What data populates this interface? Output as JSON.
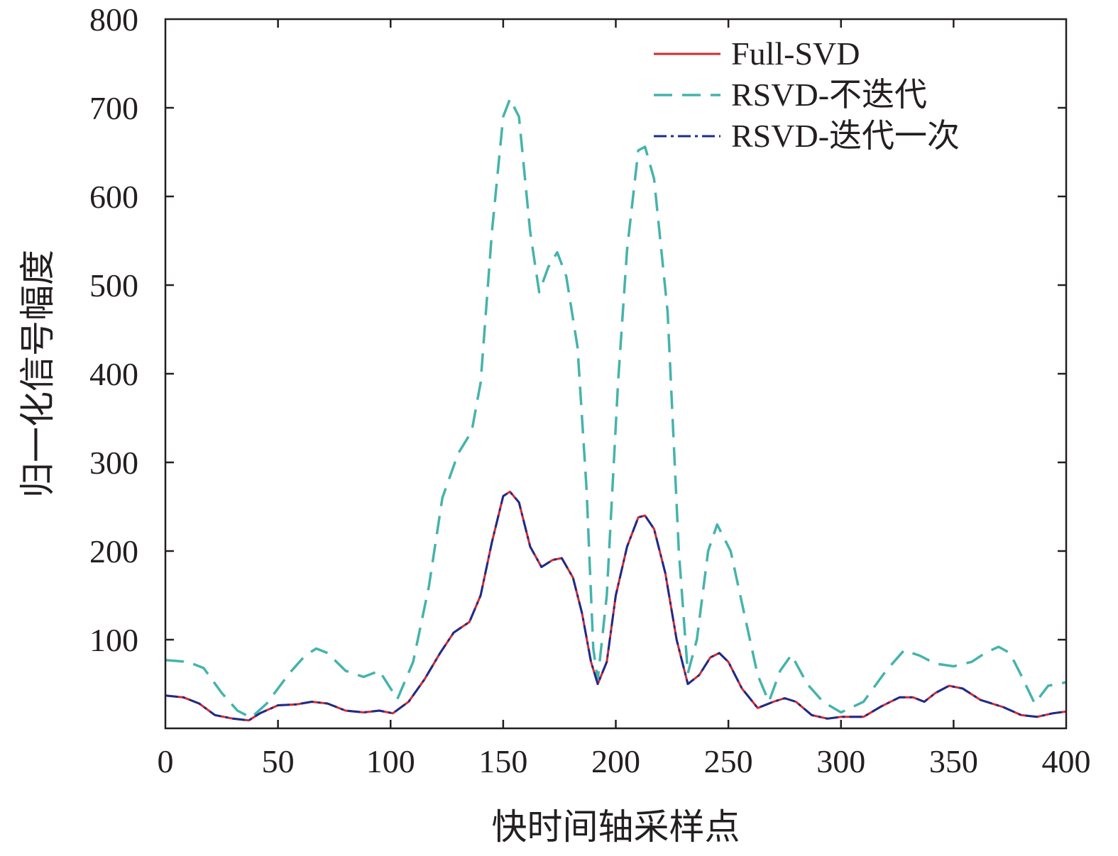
{
  "chart_data": {
    "type": "line",
    "title": "",
    "xlabel": "快时间轴采样点",
    "ylabel": "归一化信号幅度",
    "xlim": [
      0,
      400
    ],
    "ylim": [
      0,
      800
    ],
    "xticks": [
      0,
      50,
      100,
      150,
      200,
      250,
      300,
      350,
      400
    ],
    "yticks": [
      100,
      200,
      300,
      400,
      500,
      600,
      700,
      800
    ],
    "xtick_labels": [
      "0",
      "50",
      "100",
      "150",
      "200",
      "250",
      "300",
      "350",
      "400"
    ],
    "ytick_labels": [
      "100",
      "200",
      "300",
      "400",
      "500",
      "600",
      "700",
      "800"
    ],
    "grid": false,
    "legend_position": "top-right",
    "series": [
      {
        "name": "Full-SVD",
        "color": "#d7282f",
        "dash": "solid",
        "points": [
          [
            0,
            37
          ],
          [
            8,
            35
          ],
          [
            15,
            28
          ],
          [
            22,
            15
          ],
          [
            30,
            11
          ],
          [
            37,
            9
          ],
          [
            42,
            17
          ],
          [
            50,
            26
          ],
          [
            58,
            27
          ],
          [
            65,
            30
          ],
          [
            72,
            28
          ],
          [
            80,
            20
          ],
          [
            88,
            18
          ],
          [
            95,
            20
          ],
          [
            101,
            17
          ],
          [
            108,
            30
          ],
          [
            115,
            55
          ],
          [
            122,
            85
          ],
          [
            128,
            108
          ],
          [
            135,
            120
          ],
          [
            140,
            150
          ],
          [
            145,
            210
          ],
          [
            150,
            262
          ],
          [
            153,
            267
          ],
          [
            157,
            255
          ],
          [
            162,
            205
          ],
          [
            167,
            182
          ],
          [
            172,
            190
          ],
          [
            176,
            192
          ],
          [
            181,
            170
          ],
          [
            185,
            130
          ],
          [
            189,
            75
          ],
          [
            192,
            50
          ],
          [
            196,
            75
          ],
          [
            200,
            150
          ],
          [
            205,
            205
          ],
          [
            210,
            238
          ],
          [
            213,
            240
          ],
          [
            217,
            225
          ],
          [
            222,
            175
          ],
          [
            227,
            100
          ],
          [
            232,
            50
          ],
          [
            237,
            60
          ],
          [
            242,
            80
          ],
          [
            246,
            85
          ],
          [
            250,
            75
          ],
          [
            256,
            45
          ],
          [
            263,
            23
          ],
          [
            270,
            30
          ],
          [
            275,
            34
          ],
          [
            280,
            30
          ],
          [
            287,
            15
          ],
          [
            294,
            11
          ],
          [
            300,
            13
          ],
          [
            310,
            13
          ],
          [
            318,
            25
          ],
          [
            326,
            35
          ],
          [
            332,
            35
          ],
          [
            337,
            30
          ],
          [
            342,
            40
          ],
          [
            348,
            48
          ],
          [
            354,
            45
          ],
          [
            362,
            32
          ],
          [
            372,
            24
          ],
          [
            380,
            15
          ],
          [
            387,
            13
          ],
          [
            394,
            17
          ],
          [
            400,
            19
          ]
        ]
      },
      {
        "name": "RSVD-不迭代",
        "color": "#45b3ac",
        "dash": "dashed",
        "points": [
          [
            0,
            77
          ],
          [
            10,
            75
          ],
          [
            17,
            68
          ],
          [
            25,
            40
          ],
          [
            32,
            20
          ],
          [
            38,
            12
          ],
          [
            45,
            28
          ],
          [
            55,
            62
          ],
          [
            62,
            82
          ],
          [
            67,
            90
          ],
          [
            72,
            85
          ],
          [
            80,
            65
          ],
          [
            88,
            58
          ],
          [
            95,
            65
          ],
          [
            100,
            45
          ],
          [
            103,
            33
          ],
          [
            110,
            75
          ],
          [
            117,
            160
          ],
          [
            123,
            260
          ],
          [
            130,
            310
          ],
          [
            136,
            335
          ],
          [
            140,
            390
          ],
          [
            145,
            560
          ],
          [
            150,
            690
          ],
          [
            153,
            710
          ],
          [
            157,
            690
          ],
          [
            162,
            560
          ],
          [
            166,
            492
          ],
          [
            170,
            520
          ],
          [
            174,
            537
          ],
          [
            178,
            510
          ],
          [
            183,
            430
          ],
          [
            187,
            270
          ],
          [
            190,
            90
          ],
          [
            192,
            55
          ],
          [
            196,
            150
          ],
          [
            201,
            390
          ],
          [
            205,
            540
          ],
          [
            210,
            652
          ],
          [
            213,
            656
          ],
          [
            217,
            620
          ],
          [
            223,
            470
          ],
          [
            228,
            200
          ],
          [
            232,
            62
          ],
          [
            236,
            100
          ],
          [
            241,
            200
          ],
          [
            245,
            230
          ],
          [
            251,
            200
          ],
          [
            257,
            130
          ],
          [
            263,
            60
          ],
          [
            268,
            30
          ],
          [
            273,
            65
          ],
          [
            278,
            83
          ],
          [
            285,
            50
          ],
          [
            292,
            30
          ],
          [
            300,
            18
          ],
          [
            310,
            30
          ],
          [
            320,
            65
          ],
          [
            328,
            88
          ],
          [
            335,
            82
          ],
          [
            342,
            73
          ],
          [
            350,
            70
          ],
          [
            358,
            75
          ],
          [
            364,
            85
          ],
          [
            370,
            92
          ],
          [
            375,
            85
          ],
          [
            380,
            60
          ],
          [
            386,
            28
          ],
          [
            392,
            48
          ],
          [
            400,
            52
          ]
        ]
      },
      {
        "name": "RSVD-迭代一次",
        "color": "#1c2c8c",
        "dash": "dashdot",
        "points": [
          [
            0,
            37
          ],
          [
            8,
            35
          ],
          [
            15,
            28
          ],
          [
            22,
            15
          ],
          [
            30,
            11
          ],
          [
            37,
            9
          ],
          [
            42,
            17
          ],
          [
            50,
            26
          ],
          [
            58,
            27
          ],
          [
            65,
            30
          ],
          [
            72,
            28
          ],
          [
            80,
            20
          ],
          [
            88,
            18
          ],
          [
            95,
            20
          ],
          [
            101,
            17
          ],
          [
            108,
            30
          ],
          [
            115,
            55
          ],
          [
            122,
            85
          ],
          [
            128,
            108
          ],
          [
            135,
            120
          ],
          [
            140,
            150
          ],
          [
            145,
            210
          ],
          [
            150,
            262
          ],
          [
            153,
            267
          ],
          [
            157,
            255
          ],
          [
            162,
            205
          ],
          [
            167,
            182
          ],
          [
            172,
            190
          ],
          [
            176,
            192
          ],
          [
            181,
            170
          ],
          [
            185,
            130
          ],
          [
            189,
            75
          ],
          [
            192,
            50
          ],
          [
            196,
            75
          ],
          [
            200,
            150
          ],
          [
            205,
            205
          ],
          [
            210,
            238
          ],
          [
            213,
            240
          ],
          [
            217,
            225
          ],
          [
            222,
            175
          ],
          [
            227,
            100
          ],
          [
            232,
            50
          ],
          [
            237,
            60
          ],
          [
            242,
            80
          ],
          [
            246,
            85
          ],
          [
            250,
            75
          ],
          [
            256,
            45
          ],
          [
            263,
            23
          ],
          [
            270,
            30
          ],
          [
            275,
            34
          ],
          [
            280,
            30
          ],
          [
            287,
            15
          ],
          [
            294,
            11
          ],
          [
            300,
            13
          ],
          [
            310,
            13
          ],
          [
            318,
            25
          ],
          [
            326,
            35
          ],
          [
            332,
            35
          ],
          [
            337,
            30
          ],
          [
            342,
            40
          ],
          [
            348,
            48
          ],
          [
            354,
            45
          ],
          [
            362,
            32
          ],
          [
            372,
            24
          ],
          [
            380,
            15
          ],
          [
            387,
            13
          ],
          [
            394,
            17
          ],
          [
            400,
            19
          ]
        ]
      }
    ]
  }
}
